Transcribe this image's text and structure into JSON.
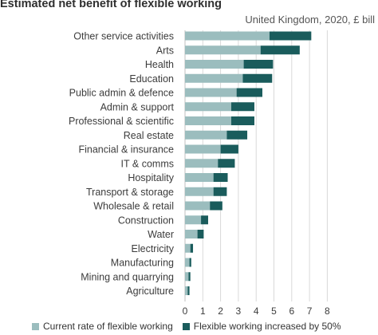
{
  "chart_data": {
    "type": "bar",
    "orientation": "horizontal",
    "stacked": true,
    "title": "Estimated net benefit of flexible working",
    "subtitle": "United Kingdom, 2020, £ bill",
    "categories": [
      "Other service activities",
      "Arts",
      "Health",
      "Education",
      "Public admin & defence",
      "Admin & support",
      "Professional & scientific",
      "Real estate",
      "Financial & insurance",
      "IT & comms",
      "Hospitality",
      "Transport & storage",
      "Wholesale & retail",
      "Construction",
      "Water",
      "Electricity",
      "Manufacturing",
      "Mining and quarrying",
      "Agriculture"
    ],
    "series": [
      {
        "name": "Current rate of flexible working",
        "color": "#9bbdbe",
        "values": [
          4.75,
          4.25,
          3.3,
          3.25,
          2.9,
          2.6,
          2.6,
          2.35,
          2.0,
          1.85,
          1.6,
          1.6,
          1.4,
          0.9,
          0.7,
          0.3,
          0.25,
          0.2,
          0.15
        ]
      },
      {
        "name": "Flexible working increased by 50%",
        "color": "#1a5c5c",
        "values": [
          2.35,
          2.2,
          1.65,
          1.65,
          1.45,
          1.3,
          1.3,
          1.15,
          1.0,
          0.95,
          0.8,
          0.75,
          0.7,
          0.4,
          0.35,
          0.15,
          0.1,
          0.1,
          0.1
        ]
      }
    ],
    "xlim": [
      0,
      8
    ],
    "xticks": [
      "0",
      "1",
      "2",
      "3",
      "4",
      "5",
      "6",
      "7",
      "8"
    ],
    "grid": "vertical",
    "legend_position": "bottom"
  }
}
